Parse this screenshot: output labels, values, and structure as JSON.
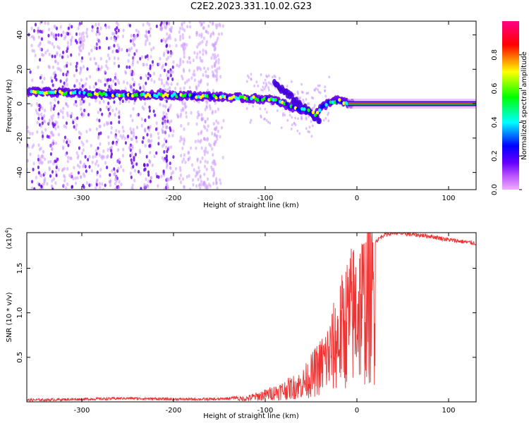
{
  "title": "C2E2.2023.331.10.02.G23",
  "colors": {
    "background": "#ffffff",
    "spectrogram_dots": "#6600ee",
    "spectrogram_faint": "#cc99ff",
    "snr_line": "#ee3333",
    "axis": "#000000"
  },
  "chart_data": [
    {
      "type": "heatmap",
      "name": "spectrogram",
      "xlabel": "Height of straight line (km)",
      "ylabel": "Frequency (Hz)",
      "xlim": [
        -360,
        130
      ],
      "ylim": [
        -50,
        48
      ],
      "x_ticks": [
        -300,
        -200,
        -100,
        0,
        100
      ],
      "y_ticks": [
        -40,
        -20,
        0,
        20,
        40
      ],
      "colorbar": {
        "label": "Normalized spectral amplitude",
        "range": [
          0,
          1
        ],
        "ticks": [
          "0.0",
          "0.2",
          "0.4",
          "0.6",
          "0.8"
        ],
        "colormap": [
          "#ee88ff",
          "#8800ff",
          "#0000ff",
          "#00ffff",
          "#00ff00",
          "#ffff00",
          "#ff0000",
          "#ff0088"
        ]
      },
      "frequency_ridge": {
        "height_km": [
          -355,
          -300,
          -250,
          -200,
          -150,
          -110,
          -90,
          -70,
          -55,
          -45,
          -40,
          -30,
          -20,
          -10,
          0,
          130
        ],
        "frequency_hz": [
          7,
          6,
          5,
          5,
          4,
          3,
          2,
          -2,
          -4,
          -6,
          -3,
          1,
          2,
          0,
          0,
          0
        ]
      }
    },
    {
      "type": "line",
      "name": "snr",
      "xlabel": "Height of straight line (km)",
      "ylabel": "SNR (10 * v/v)",
      "scale_note": "(x10",
      "scale_exp": "4",
      "xlim": [
        -360,
        130
      ],
      "ylim_x1e4": [
        0,
        1.9
      ],
      "x_ticks": [
        -300,
        -200,
        -100,
        0,
        100
      ],
      "y_ticks": [
        "0.5",
        "1.0",
        "1.5"
      ],
      "envelope": {
        "height_km": [
          -360,
          -300,
          -250,
          -200,
          -150,
          -120,
          -100,
          -80,
          -60,
          -50,
          -40,
          -30,
          -20,
          -10,
          0,
          10,
          20,
          30,
          40,
          60,
          80,
          100,
          130
        ],
        "snr_x1e4": [
          0.02,
          0.03,
          0.04,
          0.03,
          0.03,
          0.06,
          0.12,
          0.2,
          0.3,
          0.45,
          0.6,
          0.8,
          1.1,
          1.4,
          1.6,
          1.7,
          1.8,
          1.88,
          1.9,
          1.88,
          1.86,
          1.82,
          1.78
        ]
      }
    }
  ]
}
